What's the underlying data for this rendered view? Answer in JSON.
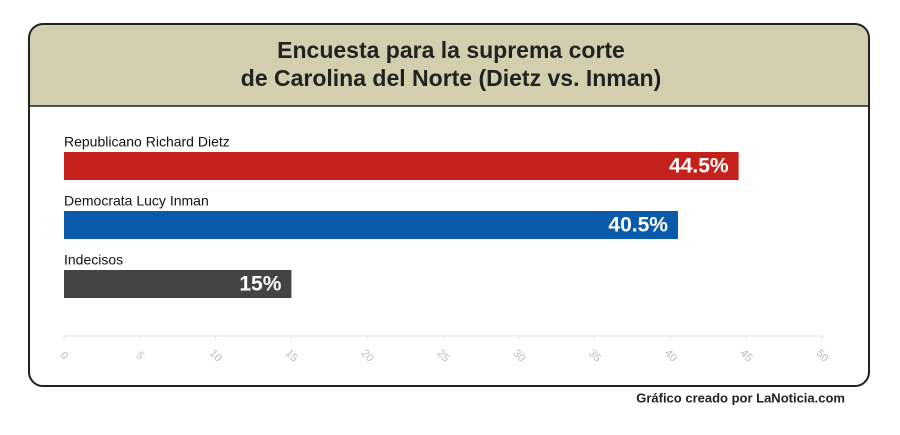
{
  "chart_data": {
    "type": "hbar",
    "title": [
      "Encuesta para la suprema corte",
      "de Carolina del Norte (Dietz vs. Inman)"
    ],
    "categories": [
      "Republicano Richard Dietz",
      "Democrata Lucy Inman",
      "Indecisos"
    ],
    "values": [
      44.5,
      40.5,
      15
    ],
    "value_labels": [
      "44.5%",
      "40.5%",
      "15%"
    ],
    "colors": [
      "#c4211c",
      "#0a5aab",
      "#444444"
    ],
    "xlim": [
      0,
      50
    ],
    "xticks": [
      0,
      5,
      10,
      15,
      20,
      25,
      30,
      35,
      40,
      45,
      50
    ],
    "source": "Gráfico creado por LaNoticia.com"
  }
}
